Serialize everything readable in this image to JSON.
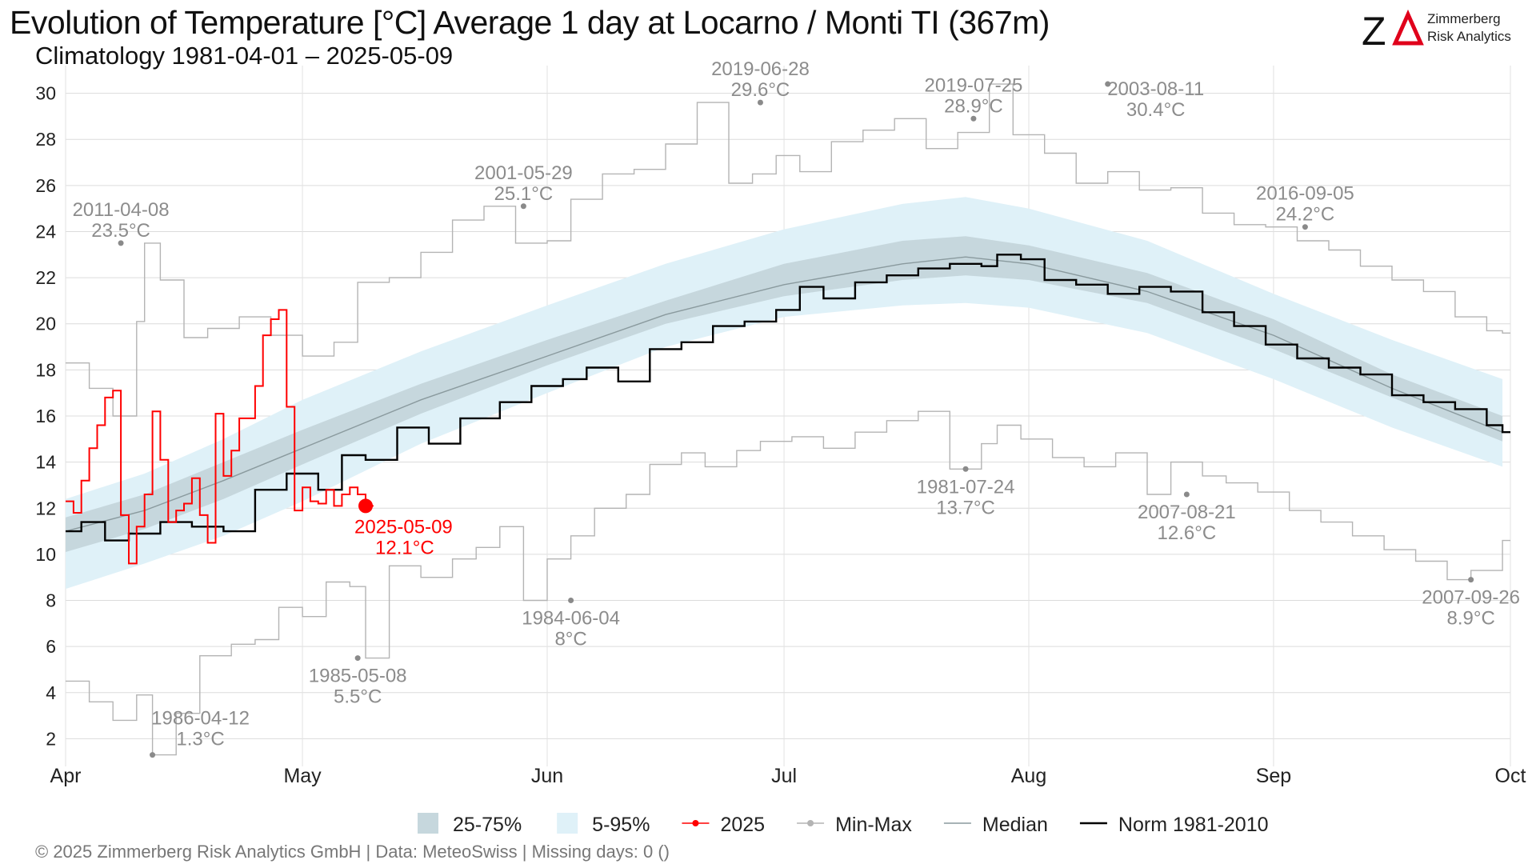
{
  "title": "Evolution of Temperature [°C] Average 1 day at Locarno / Monti  TI (367m)",
  "subtitle": "Climatology 1981-04-01 – 2025-05-09",
  "logo": {
    "mark": "ZΔ",
    "line1": "Zimmerberg",
    "line2": "Risk Analytics",
    "accent": "#e0001b"
  },
  "footer": "©  2025 Zimmerberg Risk Analytics GmbH | Data: MeteoSwiss | Missing days: 0 ()",
  "colors": {
    "band_25_75": "#c6d7dd",
    "band_5_95": "#dff1f8",
    "series_2025": "#ff0000",
    "minmax": "#b4b4b4",
    "median": "#8a9a9e",
    "norm": "#000000",
    "annotation": "#8c8c8c"
  },
  "chart_data": {
    "type": "line",
    "xaxis": {
      "start": "04-01",
      "end": "10-01",
      "ticks": [
        {
          "label": "Apr",
          "day": 0
        },
        {
          "label": "May",
          "day": 30
        },
        {
          "label": "Jun",
          "day": 61
        },
        {
          "label": "Jul",
          "day": 91
        },
        {
          "label": "Aug",
          "day": 122
        },
        {
          "label": "Sep",
          "day": 153
        },
        {
          "label": "Oct",
          "day": 183
        }
      ]
    },
    "ylim": [
      0.8,
      31.2
    ],
    "yticks": [
      2,
      4,
      6,
      8,
      10,
      12,
      14,
      16,
      18,
      20,
      22,
      24,
      26,
      28,
      30
    ],
    "grid": true,
    "legend_position": "bottom",
    "legend": [
      {
        "key": "band_25_75",
        "label": "25-75%"
      },
      {
        "key": "band_5_95",
        "label": "5-95%"
      },
      {
        "key": "series_2025",
        "label": "2025"
      },
      {
        "key": "minmax",
        "label": "Min-Max"
      },
      {
        "key": "median",
        "label": "Median"
      },
      {
        "key": "norm",
        "label": "Norm 1981-2010"
      }
    ],
    "bands": {
      "days": [
        0,
        10,
        20,
        30,
        45,
        61,
        76,
        91,
        106,
        114,
        122,
        137,
        153,
        168,
        182
      ],
      "p5": [
        8.5,
        9.6,
        10.8,
        12.3,
        14.8,
        17.0,
        19.0,
        20.3,
        20.8,
        20.9,
        20.7,
        19.6,
        17.6,
        15.5,
        13.8
      ],
      "p25": [
        10.1,
        11.1,
        12.4,
        13.9,
        16.1,
        18.2,
        20.0,
        21.2,
        21.9,
        22.1,
        21.9,
        20.9,
        18.9,
        16.8,
        14.9
      ],
      "p75": [
        11.6,
        12.6,
        14.0,
        15.4,
        17.4,
        19.3,
        21.0,
        22.6,
        23.6,
        23.8,
        23.4,
        22.2,
        20.2,
        17.8,
        16.0
      ],
      "p95": [
        12.4,
        13.5,
        15.0,
        16.7,
        18.8,
        20.8,
        22.6,
        24.1,
        25.2,
        25.5,
        25.0,
        23.6,
        21.3,
        19.3,
        17.6
      ]
    },
    "norm": {
      "days": [
        0,
        2,
        5,
        8,
        12,
        16,
        20,
        24,
        28,
        32,
        35,
        38,
        42,
        46,
        50,
        55,
        59,
        63,
        66,
        70,
        74,
        78,
        82,
        86,
        90,
        93,
        96,
        100,
        104,
        108,
        112,
        116,
        118,
        121,
        124,
        128,
        132,
        136,
        140,
        144,
        148,
        152,
        156,
        160,
        164,
        168,
        172,
        176,
        180,
        182
      ],
      "values": [
        11.0,
        11.4,
        10.6,
        10.9,
        11.4,
        11.2,
        11.0,
        12.8,
        13.5,
        12.8,
        14.3,
        14.1,
        15.5,
        14.8,
        15.9,
        16.6,
        17.3,
        17.6,
        18.1,
        17.5,
        18.9,
        19.2,
        19.9,
        20.1,
        20.6,
        21.6,
        21.1,
        21.8,
        22.1,
        22.4,
        22.6,
        22.5,
        23.0,
        22.8,
        21.9,
        21.7,
        21.3,
        21.6,
        21.4,
        20.5,
        19.9,
        19.1,
        18.5,
        18.1,
        17.8,
        16.9,
        16.6,
        16.3,
        15.6,
        15.3
      ]
    },
    "median": {
      "days": [
        0,
        10,
        20,
        30,
        45,
        61,
        76,
        91,
        106,
        114,
        122,
        137,
        153,
        168,
        182
      ],
      "values": [
        11.0,
        11.9,
        13.2,
        14.6,
        16.7,
        18.6,
        20.4,
        21.7,
        22.6,
        22.9,
        22.6,
        21.4,
        19.5,
        17.2,
        15.3
      ]
    },
    "series_2025": {
      "name": "2025",
      "days": [
        0,
        1,
        2,
        3,
        4,
        5,
        6,
        7,
        8,
        9,
        10,
        11,
        12,
        13,
        14,
        15,
        16,
        17,
        18,
        19,
        20,
        21,
        22,
        23,
        24,
        25,
        26,
        27,
        28,
        29,
        30,
        31,
        32,
        33,
        34,
        35,
        36,
        37,
        38
      ],
      "values": [
        12.3,
        11.8,
        13.2,
        14.6,
        15.6,
        16.8,
        17.1,
        11.7,
        9.6,
        11.2,
        12.6,
        16.2,
        14.1,
        11.4,
        11.9,
        12.2,
        13.3,
        11.7,
        10.5,
        16.1,
        13.4,
        14.5,
        15.9,
        15.9,
        17.3,
        19.5,
        20.2,
        20.6,
        16.4,
        11.9,
        12.9,
        12.3,
        12.2,
        12.8,
        12.1,
        12.6,
        12.9,
        12.6,
        12.1
      ]
    },
    "max_line": {
      "days": [
        0,
        3,
        6,
        9,
        10,
        12,
        15,
        18,
        22,
        26,
        30,
        34,
        37,
        41,
        45,
        49,
        53,
        57,
        61,
        64,
        68,
        72,
        76,
        80,
        84,
        87,
        90,
        93,
        97,
        101,
        105,
        109,
        113,
        117,
        120,
        124,
        128,
        132,
        136,
        140,
        144,
        148,
        152,
        156,
        160,
        164,
        168,
        172,
        176,
        180,
        182
      ],
      "values": [
        18.3,
        17.2,
        16.0,
        20.1,
        23.5,
        21.9,
        19.4,
        19.8,
        20.3,
        19.5,
        18.6,
        19.2,
        21.8,
        22.0,
        23.1,
        24.5,
        25.1,
        23.5,
        23.6,
        25.4,
        26.5,
        26.7,
        27.8,
        29.6,
        26.1,
        26.5,
        27.3,
        26.6,
        27.9,
        28.4,
        28.9,
        27.6,
        28.3,
        30.4,
        28.2,
        27.4,
        26.1,
        26.6,
        25.8,
        25.9,
        24.8,
        24.3,
        24.2,
        23.6,
        23.2,
        22.5,
        21.9,
        21.4,
        20.3,
        19.7,
        19.6
      ]
    },
    "min_line": {
      "days": [
        0,
        3,
        6,
        9,
        11,
        14,
        17,
        21,
        24,
        27,
        30,
        33,
        36,
        38,
        41,
        45,
        49,
        52,
        55,
        58,
        61,
        64,
        67,
        71,
        74,
        78,
        81,
        85,
        88,
        92,
        96,
        100,
        104,
        108,
        112,
        116,
        118,
        121,
        125,
        129,
        133,
        137,
        140,
        144,
        147,
        151,
        155,
        159,
        163,
        167,
        171,
        175,
        178,
        182
      ],
      "values": [
        4.5,
        3.6,
        2.8,
        3.9,
        1.3,
        3.1,
        5.6,
        6.1,
        6.3,
        7.7,
        7.3,
        8.8,
        8.6,
        5.5,
        9.5,
        9.0,
        9.8,
        10.3,
        11.2,
        8.0,
        9.8,
        10.8,
        12.0,
        12.6,
        13.9,
        14.4,
        13.8,
        14.5,
        14.9,
        15.1,
        14.6,
        15.3,
        15.8,
        16.2,
        13.7,
        14.8,
        15.6,
        15.0,
        14.2,
        13.8,
        14.4,
        12.6,
        14.0,
        13.4,
        13.1,
        12.7,
        11.9,
        11.4,
        10.8,
        10.2,
        9.7,
        8.9,
        9.3,
        10.6
      ]
    },
    "annotations": [
      {
        "label": "2011-04-08",
        "value": "23.5°C",
        "day": 7,
        "y": 23.5,
        "pos": "above"
      },
      {
        "label": "1986-04-12",
        "value": "1.3°C",
        "day": 11,
        "y": 1.3,
        "pos": "right"
      },
      {
        "label": "1985-05-08",
        "value": "5.5°C",
        "day": 37,
        "y": 5.5,
        "pos": "below"
      },
      {
        "label": "2001-05-29",
        "value": "25.1°C",
        "day": 58,
        "y": 25.1,
        "pos": "above"
      },
      {
        "label": "1984-06-04",
        "value": "8°C",
        "day": 64,
        "y": 8.0,
        "pos": "below"
      },
      {
        "label": "2019-06-28",
        "value": "29.6°C",
        "day": 88,
        "y": 29.6,
        "pos": "above"
      },
      {
        "label": "1981-07-24",
        "value": "13.7°C",
        "day": 114,
        "y": 13.7,
        "pos": "below"
      },
      {
        "label": "2019-07-25",
        "value": "28.9°C",
        "day": 115,
        "y": 28.9,
        "pos": "above"
      },
      {
        "label": "2003-08-11",
        "value": "30.4°C",
        "day": 132,
        "y": 30.4,
        "pos": "right"
      },
      {
        "label": "2007-08-21",
        "value": "12.6°C",
        "day": 142,
        "y": 12.6,
        "pos": "below"
      },
      {
        "label": "2016-09-05",
        "value": "24.2°C",
        "day": 157,
        "y": 24.2,
        "pos": "above"
      },
      {
        "label": "2007-09-26",
        "value": "8.9°C",
        "day": 178,
        "y": 8.9,
        "pos": "below"
      }
    ],
    "current_point": {
      "label": "2025-05-09",
      "value": "12.1°C",
      "day": 38,
      "y": 12.1
    }
  }
}
